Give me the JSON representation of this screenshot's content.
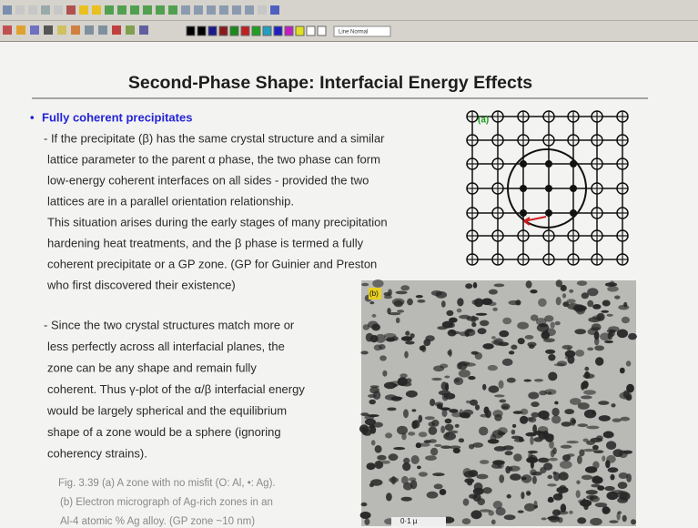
{
  "toolbar": {
    "line_style": "Line Normal"
  },
  "slide": {
    "title": "Second-Phase Shape: Interfacial Energy Effects",
    "bullet": "Fully coherent precipitates",
    "paragraph1": [
      "- If the precipitate (β) has the same crystal structure and a similar",
      "lattice parameter to the parent α phase, the two phase can form",
      "low-energy coherent interfaces on all sides - provided the two",
      "lattices are in a parallel orientation relationship.",
      "This situation arises during the early stages of many precipitation",
      "hardening heat treatments, and the β phase is termed a fully",
      "coherent precipitate or a GP zone. (GP for Guinier and Preston",
      "who first discovered their existence)"
    ],
    "paragraph2": [
      "- Since the two crystal structures match more or",
      "less perfectly across all interfacial planes, the",
      "zone can be any shape and remain fully",
      "coherent. Thus γ-plot of the α/β interfacial energy",
      "would be largely spherical and the equilibrium",
      "shape of a zone would be a sphere (ignoring",
      "coherency strains)."
    ],
    "caption": [
      "Fig. 3.39 (a) A zone with no misfit (O: Al, •: Ag).",
      "(b) Electron micrograph of Ag-rich zones in an",
      "Al-4 atomic % Ag alloy. (GP zone ~10 nm)"
    ],
    "figure_a_label": "(a)",
    "figure_b_label": "(b)",
    "scale_bar": "0·1 µ"
  }
}
